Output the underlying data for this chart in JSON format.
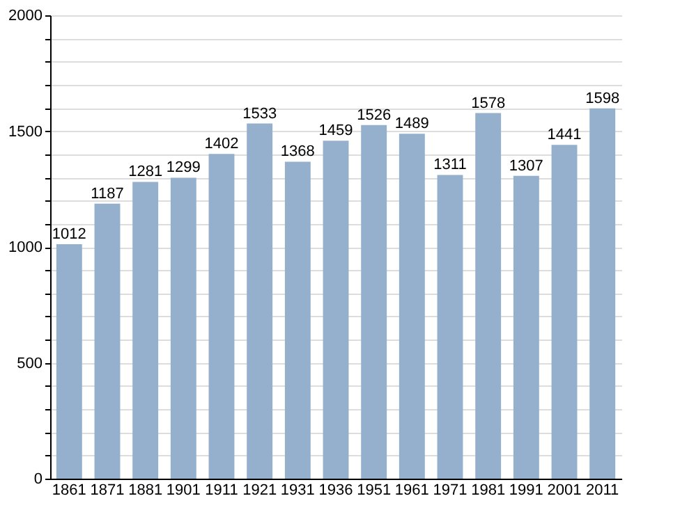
{
  "chart_data": {
    "type": "bar",
    "categories": [
      "1861",
      "1871",
      "1881",
      "1901",
      "1911",
      "1921",
      "1931",
      "1936",
      "1951",
      "1961",
      "1971",
      "1981",
      "1991",
      "2001",
      "2011"
    ],
    "values": [
      1012,
      1187,
      1281,
      1299,
      1402,
      1533,
      1368,
      1459,
      1526,
      1489,
      1311,
      1578,
      1307,
      1441,
      1598
    ],
    "color": "#94b0cc",
    "data_labels": true,
    "ylim": [
      0,
      2000
    ],
    "yticks": [
      0,
      {
        "value": 100,
        "label": null
      },
      {
        "value": 200,
        "label": null
      },
      {
        "value": 300,
        "label": null
      },
      {
        "value": 400,
        "label": null
      },
      500,
      {
        "value": 600,
        "label": null
      },
      {
        "value": 700,
        "label": null
      },
      {
        "value": 800,
        "label": null
      },
      {
        "value": 900,
        "label": null
      },
      1000,
      {
        "value": 1100,
        "label": null
      },
      {
        "value": 1200,
        "label": null
      },
      {
        "value": 1300,
        "label": null
      },
      {
        "value": 1400,
        "label": null
      },
      1500,
      {
        "value": 1600,
        "label": null
      },
      {
        "value": 1700,
        "label": null
      },
      {
        "value": 1800,
        "label": null
      },
      {
        "value": 1900,
        "label": null
      },
      2000
    ],
    "grid": "y"
  }
}
